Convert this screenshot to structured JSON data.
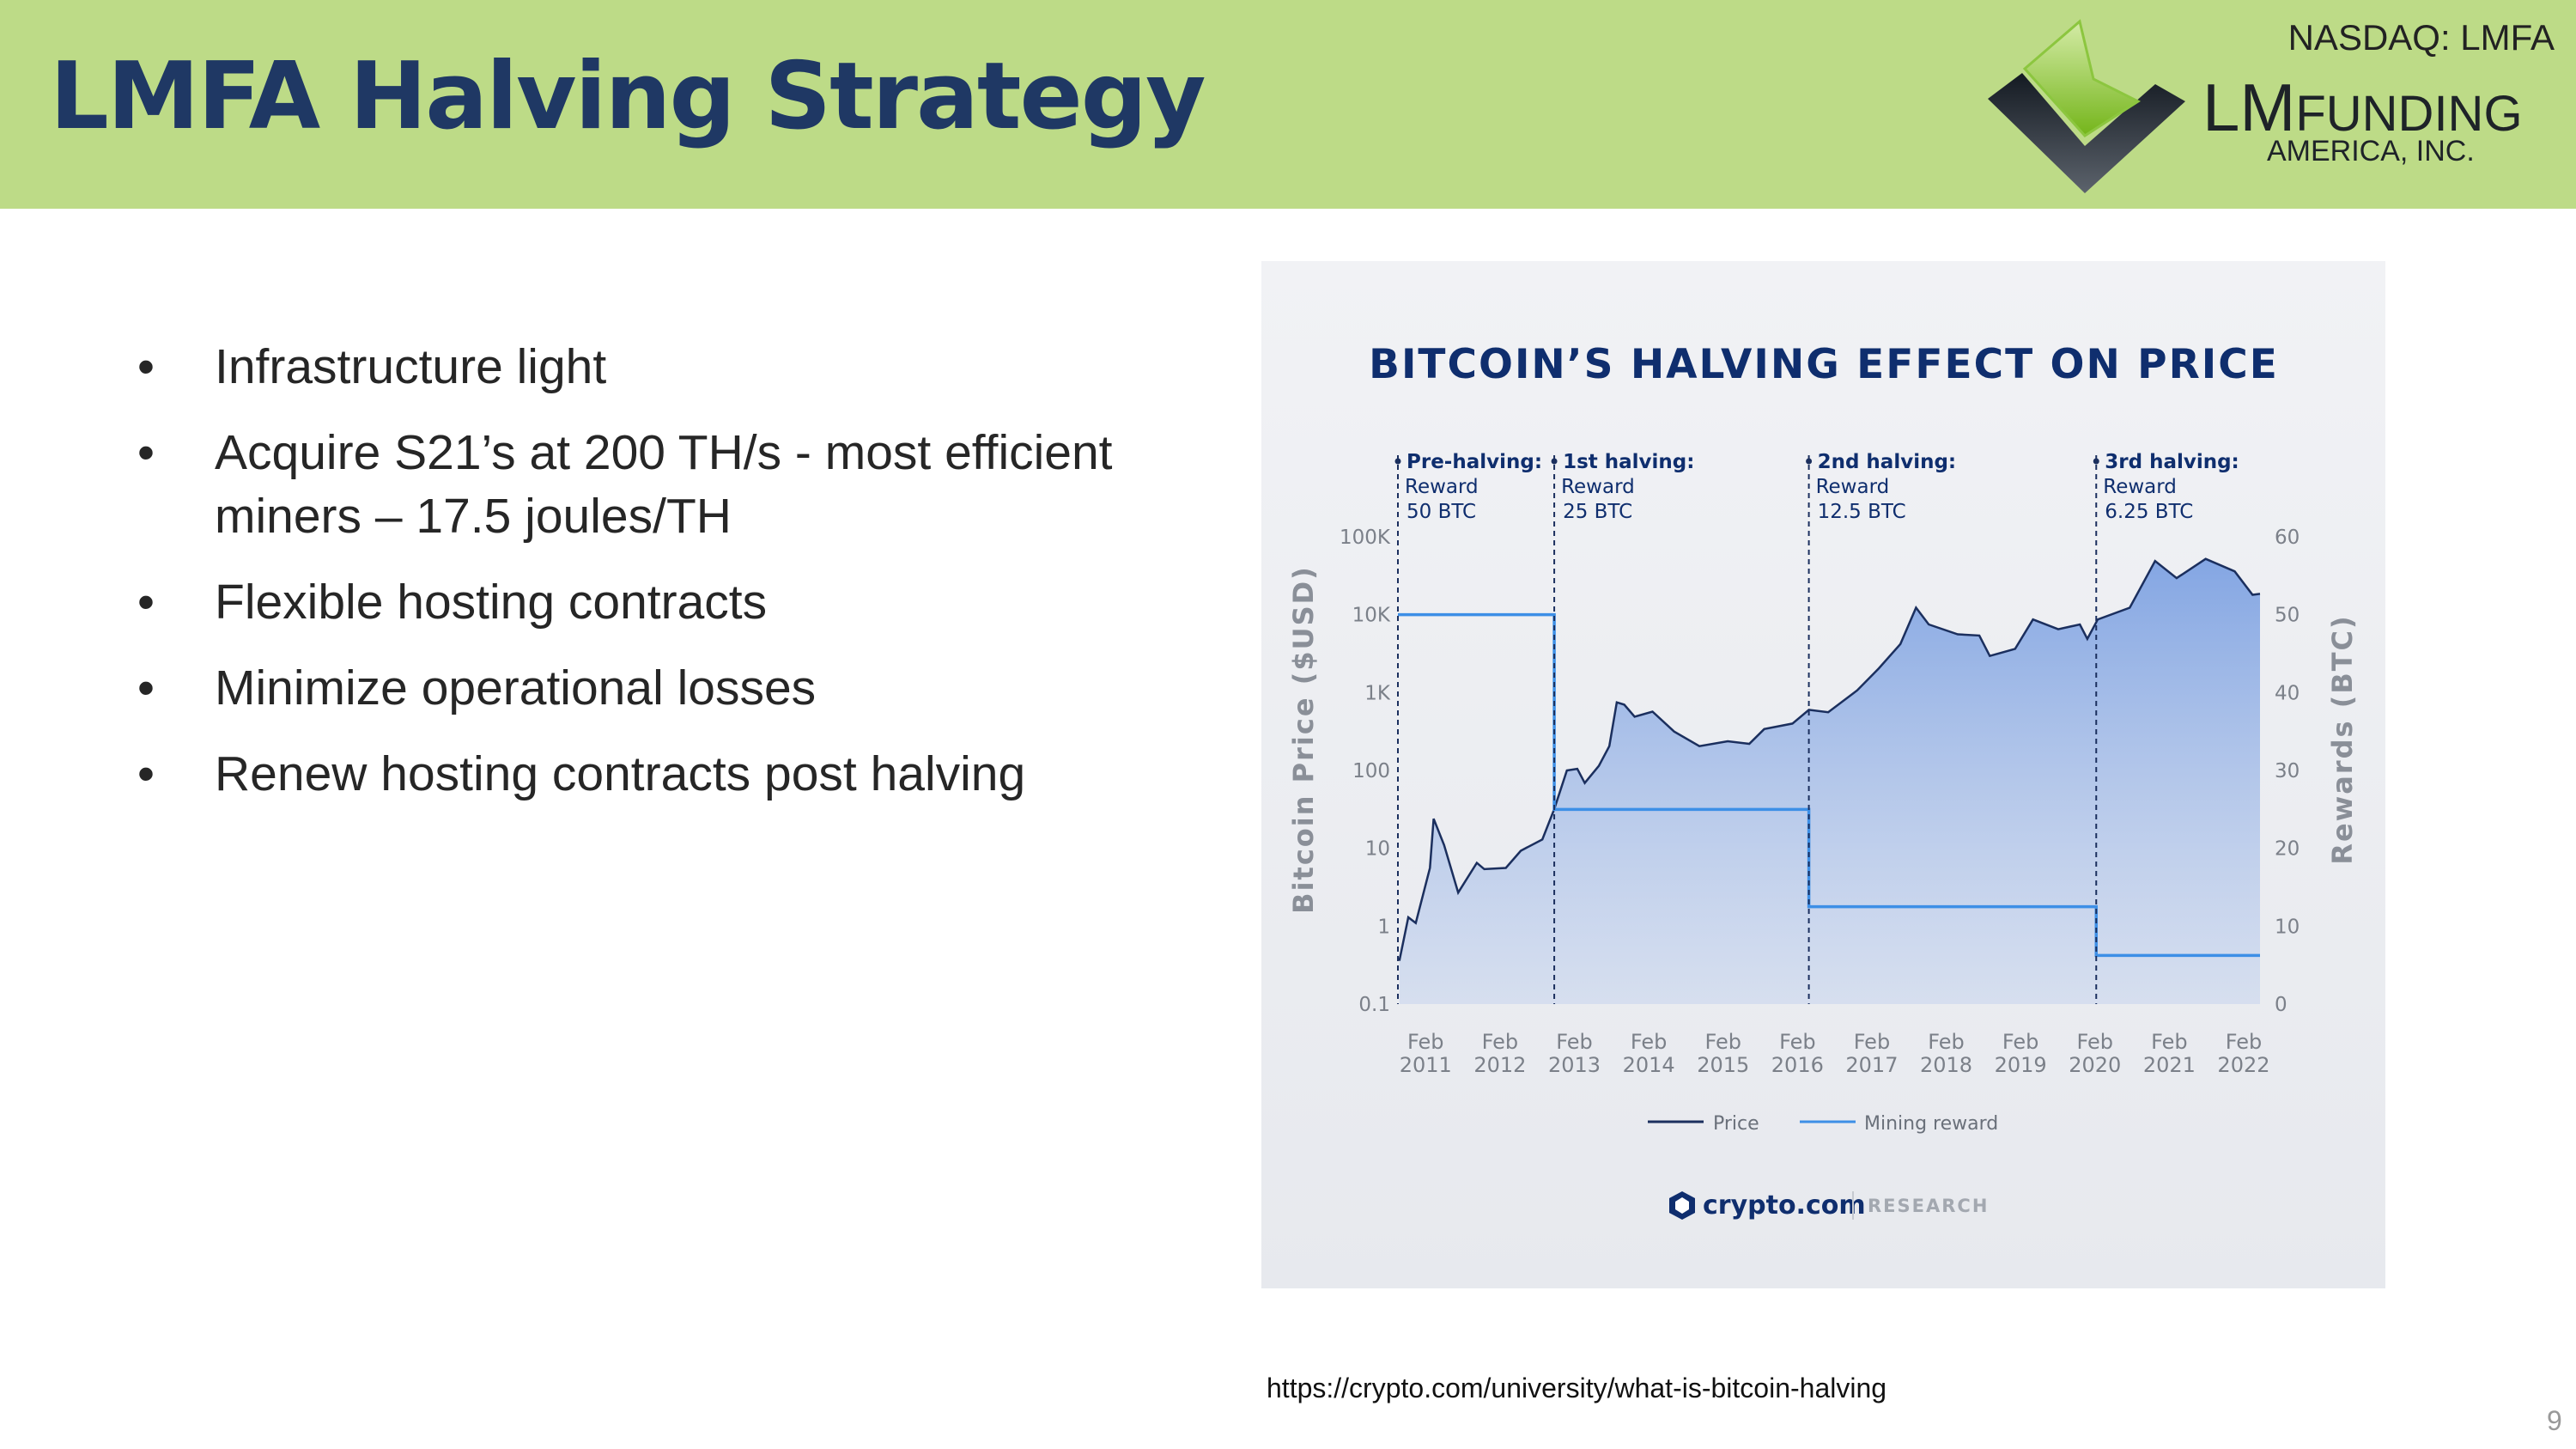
{
  "header": {
    "title": "LMFA Halving Strategy",
    "ticker": "NASDAQ: LMFA",
    "logo": {
      "lm": "LM",
      "funding": "FUNDING",
      "america": "AMERICA, INC."
    },
    "background_color": "#bddb87",
    "title_color": "#1f3864"
  },
  "bullets": [
    {
      "marker": "•",
      "text": "Infrastructure light"
    },
    {
      "marker": "•",
      "text": "Acquire S21’s at 200 TH/s - most efficient miners – 17.5 joules/TH"
    },
    {
      "marker": "•",
      "text": "Flexible hosting contracts"
    },
    {
      "marker": "•",
      "text": "Minimize operational losses"
    },
    {
      "marker": "•",
      "text": "Renew hosting contracts post halving"
    }
  ],
  "source_url": "https://crypto.com/university/what-is-bitcoin-halving",
  "page_number": "9",
  "chart_data": {
    "type": "area",
    "title": "BITCOIN’S HALVING EFFECT ON PRICE",
    "ylabel": "Bitcoin Price ($USD)",
    "y2label": "Rewards (BTC)",
    "yscale": "log",
    "ylim": [
      0.1,
      100000
    ],
    "y2lim": [
      0,
      60
    ],
    "xlim": [
      2010.62,
      2022.2
    ],
    "grid": false,
    "legend_position": "bottom",
    "y_ticks": [
      {
        "value": 0.1,
        "label": "0.1"
      },
      {
        "value": 1,
        "label": "1"
      },
      {
        "value": 10,
        "label": "10"
      },
      {
        "value": 100,
        "label": "100"
      },
      {
        "value": 1000,
        "label": "1K"
      },
      {
        "value": 10000,
        "label": "10K"
      },
      {
        "value": 100000,
        "label": "100K"
      }
    ],
    "y2_ticks": [
      {
        "value": 0,
        "label": "0"
      },
      {
        "value": 10,
        "label": "10"
      },
      {
        "value": 20,
        "label": "20"
      },
      {
        "value": 30,
        "label": "30"
      },
      {
        "value": 40,
        "label": "40"
      },
      {
        "value": 50,
        "label": "50"
      },
      {
        "value": 60,
        "label": "60"
      }
    ],
    "x_ticks": [
      {
        "value": 2011.08,
        "month": "Feb",
        "year": "2011"
      },
      {
        "value": 2012.08,
        "month": "Feb",
        "year": "2012"
      },
      {
        "value": 2013.08,
        "month": "Feb",
        "year": "2013"
      },
      {
        "value": 2014.08,
        "month": "Feb",
        "year": "2014"
      },
      {
        "value": 2015.08,
        "month": "Feb",
        "year": "2015"
      },
      {
        "value": 2016.08,
        "month": "Feb",
        "year": "2016"
      },
      {
        "value": 2017.08,
        "month": "Feb",
        "year": "2017"
      },
      {
        "value": 2018.08,
        "month": "Feb",
        "year": "2018"
      },
      {
        "value": 2019.08,
        "month": "Feb",
        "year": "2019"
      },
      {
        "value": 2020.08,
        "month": "Feb",
        "year": "2020"
      },
      {
        "value": 2021.08,
        "month": "Feb",
        "year": "2021"
      },
      {
        "value": 2022.08,
        "month": "Feb",
        "year": "2022"
      }
    ],
    "series": [
      {
        "name": "Price",
        "axis": "left",
        "color": "#1b2f5e",
        "fill": "#7fa3e0",
        "x": [
          2010.64,
          2010.76,
          2010.86,
          2011.05,
          2011.1,
          2011.24,
          2011.43,
          2011.68,
          2011.78,
          2012.07,
          2012.27,
          2012.56,
          2012.72,
          2012.89,
          2013.03,
          2013.13,
          2013.32,
          2013.46,
          2013.56,
          2013.66,
          2013.8,
          2014.04,
          2014.33,
          2014.67,
          2015.05,
          2015.34,
          2015.54,
          2015.92,
          2016.14,
          2016.4,
          2016.79,
          2017.08,
          2017.37,
          2017.58,
          2017.75,
          2018.14,
          2018.43,
          2018.57,
          2018.91,
          2019.15,
          2019.49,
          2019.78,
          2019.88,
          2020.02,
          2020.45,
          2020.79,
          2021.08,
          2021.47,
          2021.86,
          2022.1,
          2022.2
        ],
        "y": [
          0.36,
          1.3,
          1.1,
          5.6,
          24,
          11,
          2.7,
          6.5,
          5.4,
          5.6,
          9.3,
          13,
          32,
          100,
          105,
          69,
          115,
          205,
          750,
          700,
          490,
          570,
          316,
          205,
          237,
          220,
          340,
          400,
          600,
          560,
          1070,
          2050,
          4200,
          12300,
          7500,
          5600,
          5400,
          2950,
          3650,
          8700,
          6500,
          7500,
          4900,
          8700,
          12300,
          49000,
          29500,
          52000,
          36000,
          18000,
          18500
        ]
      },
      {
        "name": "Mining reward",
        "axis": "right",
        "color": "#3d8fe6",
        "step": true,
        "x": [
          2010.62,
          2012.72,
          2016.14,
          2020.0,
          2022.2
        ],
        "y": [
          50,
          25,
          12.5,
          6.25,
          6.25
        ]
      }
    ],
    "annotations": [
      {
        "x": 2010.62,
        "title": "Pre-halving:",
        "line1": "Reward",
        "line2": "50 BTC"
      },
      {
        "x": 2012.72,
        "title": "1st halving:",
        "line1": "Reward",
        "line2": "25 BTC"
      },
      {
        "x": 2016.14,
        "title": "2nd halving:",
        "line1": "Reward",
        "line2": "12.5 BTC"
      },
      {
        "x": 2020.0,
        "title": "3rd halving:",
        "line1": "Reward",
        "line2": "6.25 BTC"
      }
    ],
    "footer": {
      "brand": "crypto.com",
      "section": "RESEARCH"
    },
    "title_color": "#0f2e6e"
  }
}
